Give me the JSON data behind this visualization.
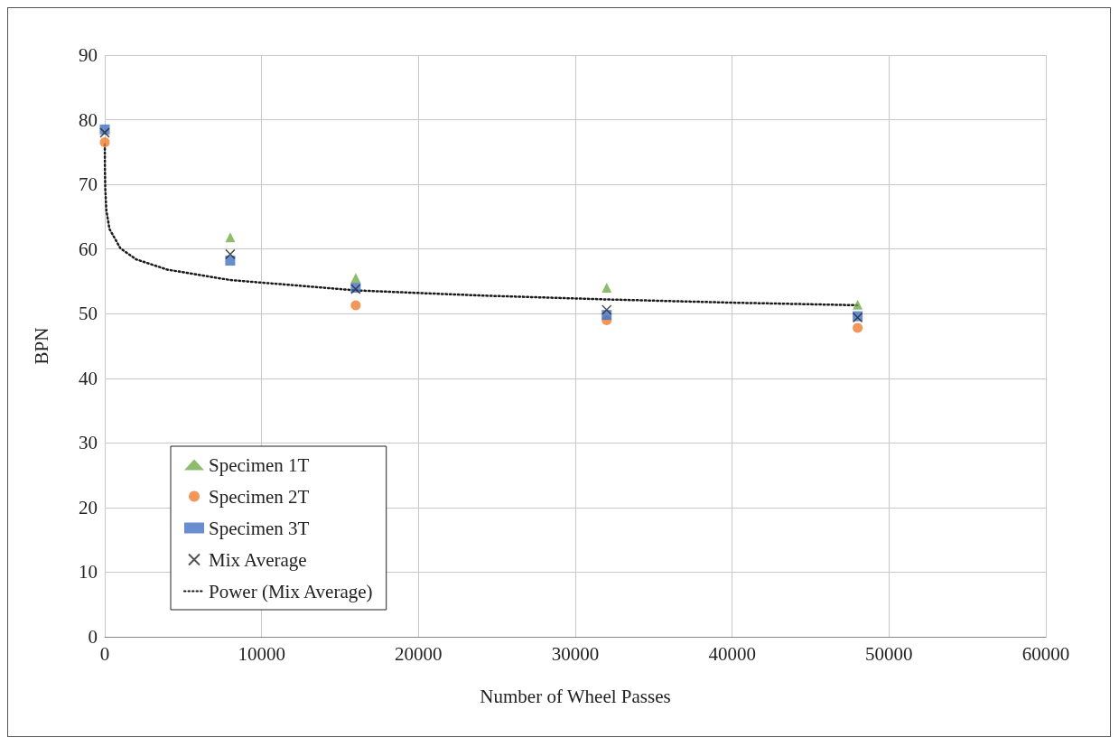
{
  "chart_data": {
    "type": "scatter",
    "xlabel": "Number of Wheel Passes",
    "ylabel": "BPN",
    "x": [
      0,
      8000,
      16000,
      32000,
      48000
    ],
    "series": [
      {
        "name": "Specimen 1T",
        "color": "#70ad47",
        "marker": "triangle",
        "values": [
          null,
          61.8,
          55.5,
          54.0,
          51.4
        ]
      },
      {
        "name": "Specimen 2T",
        "color": "#ed7d31",
        "marker": "circle",
        "values": [
          76.5,
          null,
          51.3,
          49.0,
          47.8
        ]
      },
      {
        "name": "Specimen 3T",
        "color": "#4472c4",
        "marker": "square",
        "values": [
          78.5,
          58.2,
          54.0,
          49.8,
          49.6
        ]
      },
      {
        "name": "Mix Average",
        "color": "#262626",
        "marker": "cross",
        "values": [
          78.0,
          59.2,
          53.8,
          50.6,
          49.4
        ]
      },
      {
        "name": "Power (Mix Average)",
        "type": "line",
        "color": "#1a1a1a",
        "marker": "none",
        "line_style": "dotted",
        "x": [
          3,
          10,
          30,
          100,
          300,
          1000,
          2000,
          4000,
          8000,
          16000,
          24000,
          32000,
          40000,
          48000
        ],
        "values": [
          76.2,
          72.5,
          69.4,
          66.0,
          63.1,
          60.1,
          58.4,
          56.8,
          55.2,
          53.6,
          52.8,
          52.2,
          51.7,
          51.3
        ]
      }
    ],
    "xlim": [
      0,
      60000
    ],
    "xticks": [
      0,
      10000,
      20000,
      30000,
      40000,
      50000,
      60000
    ],
    "ylim": [
      0,
      90
    ],
    "yticks": [
      0,
      10,
      20,
      30,
      40,
      50,
      60,
      70,
      80,
      90
    ],
    "grid": true,
    "legend": "bottom left"
  }
}
